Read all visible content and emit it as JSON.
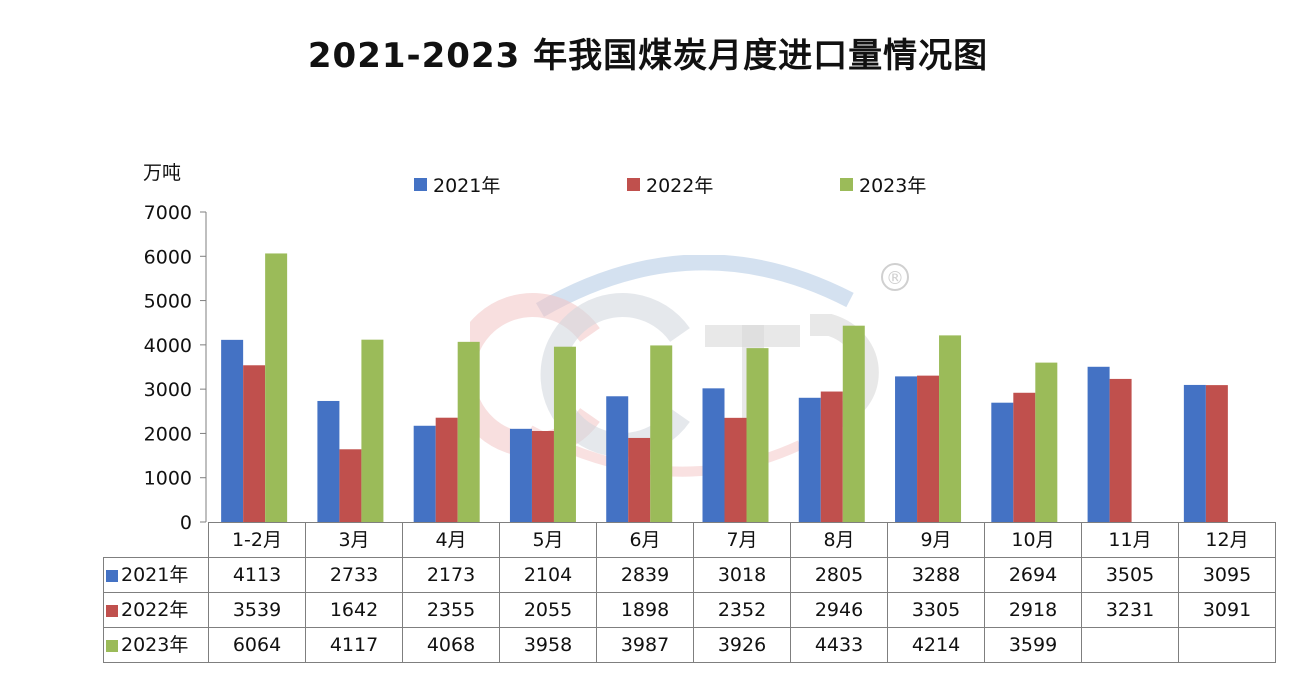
{
  "chart_data": {
    "type": "bar",
    "title": "2021-2023 年我国煤炭月度进口量情况图",
    "ylabel": "万吨",
    "xlabel": "",
    "ylim": [
      0,
      7000
    ],
    "yticks": [
      0,
      1000,
      2000,
      3000,
      4000,
      5000,
      6000,
      7000
    ],
    "categories": [
      "1-2月",
      "3月",
      "4月",
      "5月",
      "6月",
      "7月",
      "8月",
      "9月",
      "10月",
      "11月",
      "12月"
    ],
    "series": [
      {
        "name": "2021年",
        "color": "#4472C4",
        "values": [
          4113,
          2733,
          2173,
          2104,
          2839,
          3018,
          2805,
          3288,
          2694,
          3505,
          3095
        ]
      },
      {
        "name": "2022年",
        "color": "#C0504D",
        "values": [
          3539,
          1642,
          2355,
          2055,
          1898,
          2352,
          2946,
          3305,
          2918,
          3231,
          3091
        ]
      },
      {
        "name": "2023年",
        "color": "#9BBB59",
        "values": [
          6064,
          4117,
          4068,
          3958,
          3987,
          3926,
          4433,
          4214,
          3599,
          null,
          null
        ]
      }
    ],
    "legend": "top",
    "grid": false,
    "data_table": true
  },
  "watermark": {
    "registered_mark": "®"
  }
}
